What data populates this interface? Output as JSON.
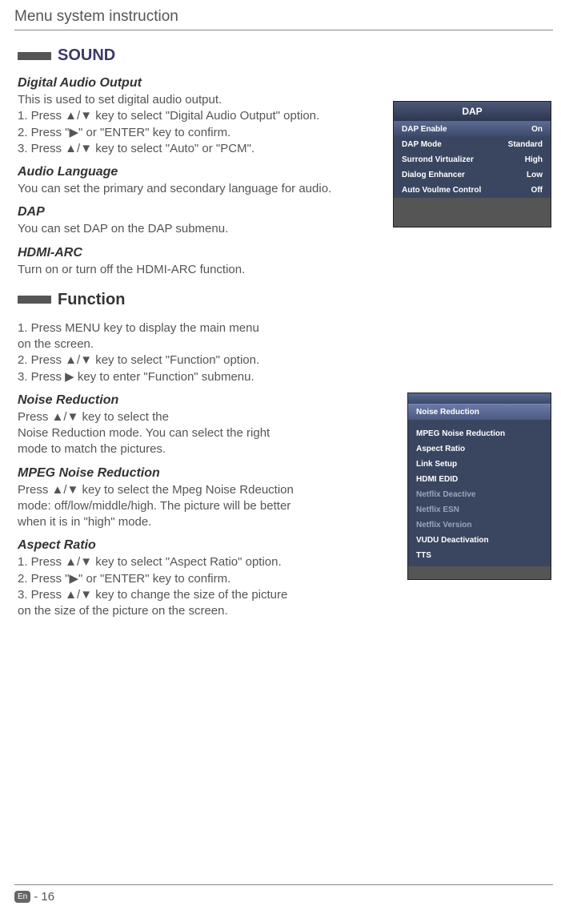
{
  "page_title": "Menu system instruction",
  "sound": {
    "heading": "SOUND",
    "digital_audio": {
      "title": "Digital Audio Output",
      "line1": "This is used to  set  digital  audio  output.",
      "line2": "1. Press ▲/▼ key to select \"Digital  Audio  Output\" option.",
      "line3": "2. Press \"▶\" or \"ENTER\" key to confirm.",
      "line4": "3. Press ▲/▼ key to select  \"Auto\" or \"PCM\"."
    },
    "audio_lang": {
      "title": "Audio Language",
      "line1": "You can set the primary and secondary language for audio."
    },
    "dap": {
      "title": "DAP",
      "line1": "You  can  set  DAP  on  the  DAP  submenu."
    },
    "hdmi_arc": {
      "title": "HDMI-ARC",
      "line1": "Turn on or turn off the HDMI-ARC function."
    }
  },
  "function": {
    "heading": "Function",
    "intro1": "1. Press MENU key to display the main menu",
    "intro1b": "    on the screen.",
    "intro2": "2. Press  ▲/▼ key to select \"Function\" option.",
    "intro3": "3. Press ▶ key to enter \"Function\" submenu.",
    "noise": {
      "title": "Noise Reduction",
      "l1": "Press ▲/▼ key to select the",
      "l2": "Noise Reduction mode. You can select the right",
      "l3": "mode to match the pictures."
    },
    "mpeg": {
      "title": "MPEG Noise Reduction",
      "l1": "Press ▲/▼ key to select the Mpeg Noise Rdeuction",
      "l2": "mode: off/low/middle/high. The picture will be better",
      "l3": "when it is in \"high\" mode."
    },
    "aspect": {
      "title": "Aspect Ratio",
      "l1": "1. Press ▲/▼ key to select \"Aspect Ratio\"  option.",
      "l2": "2. Press \"▶\" or \"ENTER\" key to confirm.",
      "l3": "3. Press ▲/▼ key to change the size of the picture",
      "l4": "    on the size of the picture on the screen."
    }
  },
  "dap_menu": {
    "title": "DAP",
    "rows": [
      {
        "label": "DAP  Enable",
        "value": "On"
      },
      {
        "label": "DAP  Mode",
        "value": "Standard"
      },
      {
        "label": "Surrond  Virtualizer",
        "value": "High"
      },
      {
        "label": "Dialog  Enhancer",
        "value": "Low"
      },
      {
        "label": "Auto Voulme  Control",
        "value": "Off"
      }
    ]
  },
  "func_menu": {
    "rows": [
      {
        "label": "Noise Reduction",
        "hi": true
      },
      {
        "label": "MPEG Noise Reduction"
      },
      {
        "label": "Aspect Ratio"
      },
      {
        "label": "Link  Setup"
      },
      {
        "label": "HDMI EDID"
      },
      {
        "label": "Netflix Deactive",
        "dim": true
      },
      {
        "label": "Netflix ESN",
        "dim": true
      },
      {
        "label": "Netflix Version",
        "dim": true
      },
      {
        "label": "VUDU Deactivation"
      },
      {
        "label": "TTS"
      }
    ]
  },
  "footer": {
    "lang": "En",
    "page": "- 16"
  }
}
